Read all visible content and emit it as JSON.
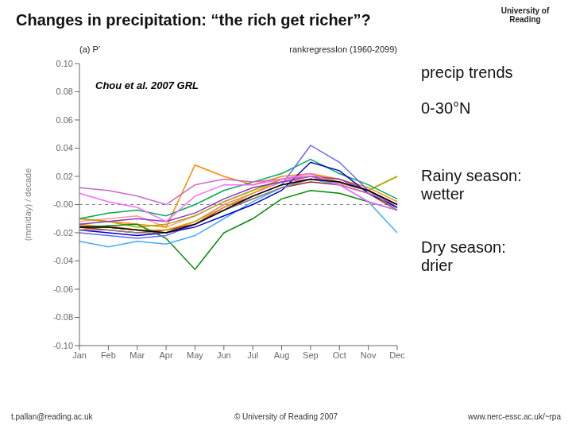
{
  "chart_data": {
    "type": "line",
    "title": "Changes in precipitation: “the rich get richer”?",
    "ylabel": "(mm/day) / decade",
    "annotations": [
      "University of\nReading",
      "(a)  P’",
      "rankregresslon  (1960-2099)",
      "Chou et al. 2007 GRL",
      "precip trends",
      "0-30°N",
      "Rainy season:\nwetter",
      "Dry season:\ndrier",
      "t.pallan@reading.ac.uk",
      "© University of Reading 2007",
      "www.nerc-essc.ac.uk/~rpa"
    ],
    "categories": [
      "Jan",
      "Feb",
      "Mar",
      "Apr",
      "May",
      "Jun",
      "Jul",
      "Aug",
      "Sep",
      "Oct",
      "Nov",
      "Dec"
    ],
    "ylim": [
      -0.1,
      0.1
    ],
    "yticks": [
      {
        "value": -0.1,
        "label": "-0.10"
      },
      -0.08,
      -0.06,
      -0.04,
      -0.02,
      {
        "value": 0,
        "label": "-0.00"
      },
      0.02,
      0.04,
      0.06,
      0.08,
      {
        "value": 0.1,
        "label": "0.10"
      }
    ],
    "hlines": [
      0
    ],
    "grid": false,
    "series": [
      {
        "color": "#e08080",
        "values": [
          -0.018,
          -0.015,
          -0.018,
          -0.02,
          -0.012,
          0.0,
          0.008,
          0.016,
          0.018,
          0.015,
          0.01,
          -0.002
        ]
      },
      {
        "color": "#c04040",
        "values": [
          -0.015,
          -0.016,
          -0.018,
          -0.02,
          -0.014,
          -0.002,
          0.006,
          0.014,
          0.018,
          0.016,
          0.01,
          -0.002
        ]
      },
      {
        "color": "#ff9999",
        "values": [
          -0.012,
          -0.01,
          -0.008,
          -0.016,
          -0.008,
          0.002,
          0.01,
          0.018,
          0.02,
          0.016,
          0.01,
          0.0
        ]
      },
      {
        "color": "#aa2222",
        "values": [
          -0.016,
          -0.018,
          -0.02,
          -0.018,
          -0.014,
          -0.004,
          0.004,
          0.012,
          0.016,
          0.014,
          0.008,
          -0.004
        ]
      },
      {
        "color": "#ff8800",
        "values": [
          -0.01,
          -0.012,
          -0.014,
          -0.016,
          0.028,
          0.02,
          0.014,
          0.02,
          0.022,
          0.018,
          0.012,
          0.002
        ]
      },
      {
        "color": "#ddaa00",
        "values": [
          -0.014,
          -0.016,
          -0.018,
          -0.018,
          -0.012,
          -0.002,
          0.008,
          0.018,
          0.022,
          0.016,
          0.01,
          0.02
        ]
      },
      {
        "color": "#aaaa00",
        "values": [
          -0.01,
          -0.012,
          -0.016,
          -0.014,
          -0.008,
          0.002,
          0.01,
          0.018,
          0.02,
          0.016,
          0.01,
          0.02
        ]
      },
      {
        "color": "#008800",
        "values": [
          -0.016,
          -0.015,
          -0.014,
          -0.024,
          -0.046,
          -0.02,
          -0.01,
          0.004,
          0.01,
          0.008,
          0.002,
          -0.004
        ]
      },
      {
        "color": "#00aa55",
        "values": [
          -0.01,
          -0.006,
          -0.004,
          -0.008,
          0.0,
          0.01,
          0.016,
          0.022,
          0.032,
          0.022,
          0.014,
          0.004
        ]
      },
      {
        "color": "#44aaff",
        "values": [
          -0.026,
          -0.03,
          -0.026,
          -0.028,
          -0.022,
          -0.01,
          0.002,
          0.012,
          0.018,
          0.014,
          0.002,
          -0.02
        ]
      },
      {
        "color": "#6666ff",
        "values": [
          -0.02,
          -0.022,
          -0.024,
          -0.022,
          -0.014,
          -0.004,
          0.006,
          0.014,
          0.042,
          0.03,
          0.01,
          -0.004
        ]
      },
      {
        "color": "#0000cc",
        "values": [
          -0.018,
          -0.02,
          -0.022,
          -0.02,
          -0.016,
          -0.008,
          0.0,
          0.01,
          0.03,
          0.024,
          0.008,
          -0.002
        ]
      },
      {
        "color": "#8833cc",
        "values": [
          -0.014,
          -0.012,
          -0.01,
          -0.012,
          -0.006,
          0.004,
          0.012,
          0.016,
          0.02,
          0.018,
          0.01,
          0.0
        ]
      },
      {
        "color": "#cc66cc",
        "values": [
          0.012,
          0.01,
          0.006,
          0.0,
          0.014,
          0.018,
          0.016,
          0.018,
          0.02,
          0.014,
          0.008,
          0.0
        ]
      },
      {
        "color": "#ff66ff",
        "values": [
          0.008,
          0.002,
          -0.002,
          -0.012,
          0.006,
          0.014,
          0.014,
          0.018,
          0.022,
          0.014,
          0.002,
          -0.004
        ]
      },
      {
        "color": "#888888",
        "values": [
          -0.018,
          -0.018,
          -0.02,
          -0.02,
          -0.014,
          -0.004,
          0.004,
          0.012,
          0.018,
          0.016,
          0.01,
          -0.004
        ]
      },
      {
        "color": "#000000",
        "values": [
          -0.016,
          -0.016,
          -0.018,
          -0.02,
          -0.014,
          -0.004,
          0.006,
          0.014,
          0.018,
          0.016,
          0.01,
          0.0
        ]
      }
    ]
  }
}
